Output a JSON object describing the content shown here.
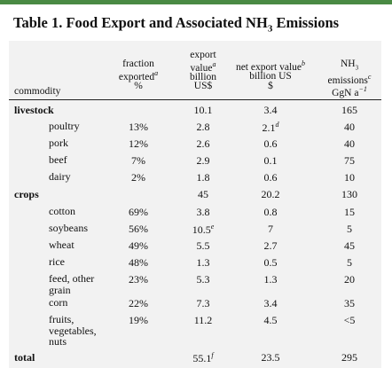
{
  "title": {
    "text": "Table 1. Food Export and Associated NH",
    "sub": "3",
    "suffix": " Emissions"
  },
  "headers": {
    "commodity": "commodity",
    "fraction": {
      "l1": "fraction",
      "l2": "exported",
      "sup": "a",
      "l3": "%"
    },
    "export_value": {
      "l1": "export",
      "l2": "value",
      "sup": "a",
      "l3": "billion",
      "l4": "US$"
    },
    "net_export": {
      "l1": "net export value",
      "sup": "b",
      "l2": "billion US",
      "l3": "$"
    },
    "nh3": {
      "l1": "NH",
      "l1sub": "3",
      "l2": "emissions",
      "sup": "c",
      "l3": "GgN a",
      "l3sup": "−1"
    }
  },
  "rows": [
    {
      "label": "livestock",
      "group": true,
      "fraction": "",
      "export": "10.1",
      "net": "3.4",
      "nh3": "165"
    },
    {
      "label": "poultry",
      "fraction": "13%",
      "export": "2.8",
      "net": "2.1",
      "net_sup": "d",
      "nh3": "40"
    },
    {
      "label": "pork",
      "fraction": "12%",
      "export": "2.6",
      "net": "0.6",
      "nh3": "40"
    },
    {
      "label": "beef",
      "fraction": "7%",
      "export": "2.9",
      "net": "0.1",
      "nh3": "75"
    },
    {
      "label": "dairy",
      "fraction": "2%",
      "export": "1.8",
      "net": "0.6",
      "nh3": "10"
    },
    {
      "label": "crops",
      "group": true,
      "fraction": "",
      "export": "45",
      "net": "20.2",
      "nh3": "130"
    },
    {
      "label": "cotton",
      "fraction": "69%",
      "export": "3.8",
      "net": "0.8",
      "nh3": "15"
    },
    {
      "label": "soybeans",
      "fraction": "56%",
      "export": "10.5",
      "export_sup": "e",
      "net": "7",
      "nh3": "5"
    },
    {
      "label": "wheat",
      "fraction": "49%",
      "export": "5.5",
      "net": "2.7",
      "nh3": "45"
    },
    {
      "label": "rice",
      "fraction": "48%",
      "export": "1.3",
      "net": "0.5",
      "nh3": "5"
    },
    {
      "label_lines": [
        "feed, other",
        "grain"
      ],
      "fraction": "23%",
      "export": "5.3",
      "net": "1.3",
      "nh3": "20"
    },
    {
      "label": "corn",
      "fraction": "22%",
      "export": "7.3",
      "net": "3.4",
      "nh3": "35"
    },
    {
      "label_lines": [
        "fruits,",
        "vegetables,",
        "nuts"
      ],
      "fraction": "19%",
      "export": "11.2",
      "net": "4.5",
      "nh3": "<5"
    },
    {
      "label": "total",
      "group": true,
      "fraction": "",
      "export": "55.1",
      "export_sup": "f",
      "net": "23.5",
      "nh3": "295"
    }
  ]
}
